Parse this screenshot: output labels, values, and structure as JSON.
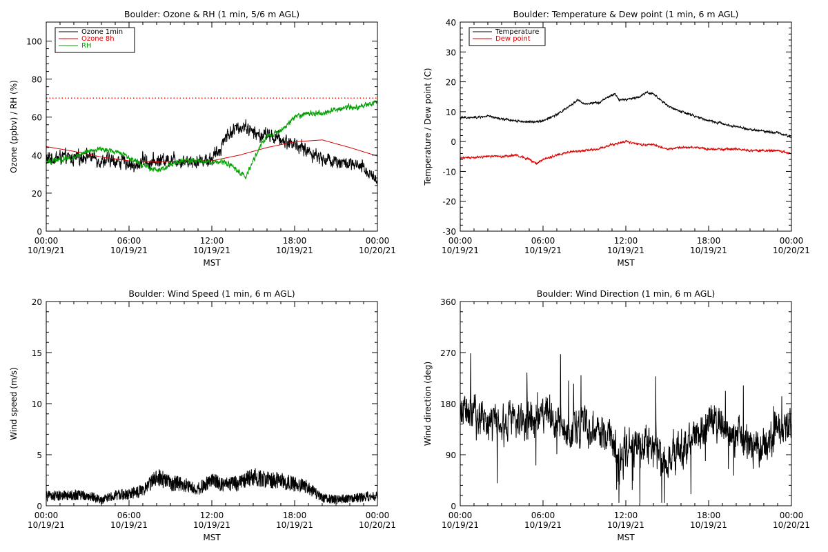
{
  "chart_data": [
    {
      "type": "line",
      "title": "Boulder: Ozone & RH (1 min, 5/6 m AGL)",
      "xlabel": "MST",
      "ylabel": "Ozone (ppbv) / RH (%)",
      "xlim": [
        0,
        24
      ],
      "ylim": [
        0,
        110
      ],
      "x_ticks": [
        {
          "x": 0,
          "time": "00:00",
          "date": "10/19/21"
        },
        {
          "x": 6,
          "time": "06:00",
          "date": "10/19/21"
        },
        {
          "x": 12,
          "time": "12:00",
          "date": "10/19/21"
        },
        {
          "x": 18,
          "time": "18:00",
          "date": "10/19/21"
        },
        {
          "x": 24,
          "time": "00:00",
          "date": "10/20/21"
        }
      ],
      "y_ticks": [
        0,
        20,
        40,
        60,
        80,
        100
      ],
      "reference_line": {
        "y": 70,
        "color": "#ff0000",
        "style": "dotted"
      },
      "legend": {
        "position": "top-left"
      },
      "series": [
        {
          "name": "Ozone 1min",
          "color": "#000000",
          "noise": 2.5,
          "x": [
            0,
            1,
            2,
            3,
            4,
            5,
            6,
            6.5,
            7,
            7.5,
            8,
            9,
            10,
            11,
            12,
            12.5,
            13,
            14,
            14.5,
            15,
            15.5,
            16,
            17,
            18,
            19,
            20,
            21,
            22,
            23,
            23.5,
            24
          ],
          "y": [
            38,
            39,
            38,
            40,
            37,
            37,
            36,
            33,
            38,
            36,
            37,
            38,
            37,
            37,
            38,
            42,
            50,
            55,
            55,
            52,
            50,
            51,
            48,
            46,
            42,
            38,
            37,
            35,
            33,
            30,
            27
          ]
        },
        {
          "name": "Ozone 8h",
          "color": "#dd0000",
          "noise": 0,
          "x": [
            0,
            2,
            4,
            6,
            8,
            10,
            12,
            14,
            16,
            18,
            20,
            22,
            24
          ],
          "y": [
            44.5,
            42,
            39,
            37,
            36.5,
            37,
            37,
            40,
            44,
            47,
            48,
            44,
            39.5
          ]
        },
        {
          "name": "RH",
          "color": "#00a000",
          "noise": 1,
          "x": [
            0,
            2,
            3,
            4,
            5,
            6,
            7,
            8,
            9,
            10,
            11,
            12,
            13,
            13.5,
            14,
            14.5,
            15,
            15.5,
            16,
            17,
            18,
            19,
            20,
            21,
            22,
            23,
            24
          ],
          "y": [
            36,
            39,
            42,
            43,
            42,
            39,
            35,
            32,
            35,
            37,
            37,
            36,
            36,
            34,
            31,
            29,
            37,
            44,
            50,
            53,
            60,
            62,
            62,
            64,
            65,
            66,
            68
          ]
        }
      ]
    },
    {
      "type": "line",
      "title": "Boulder: Temperature & Dew point (1 min, 6 m AGL)",
      "xlabel": "MST",
      "ylabel": "Temperature / Dew point (C)",
      "xlim": [
        0,
        24
      ],
      "ylim": [
        -30,
        40
      ],
      "x_ticks": [
        {
          "x": 0,
          "time": "00:00",
          "date": "10/19/21"
        },
        {
          "x": 6,
          "time": "06:00",
          "date": "10/19/21"
        },
        {
          "x": 12,
          "time": "12:00",
          "date": "10/19/21"
        },
        {
          "x": 18,
          "time": "18:00",
          "date": "10/19/21"
        },
        {
          "x": 24,
          "time": "00:00",
          "date": "10/20/21"
        }
      ],
      "y_ticks": [
        -30,
        -20,
        -10,
        0,
        10,
        20,
        30,
        40
      ],
      "legend": {
        "position": "top-left"
      },
      "series": [
        {
          "name": "Temperature",
          "color": "#000000",
          "noise": 0.25,
          "x": [
            0,
            1,
            2,
            3,
            4,
            5,
            6,
            7,
            8,
            8.5,
            9,
            10,
            11,
            11.2,
            11.5,
            12,
            13,
            13.5,
            14,
            15,
            16,
            17,
            18,
            19,
            20,
            21,
            22,
            23,
            24
          ],
          "y": [
            8,
            8,
            8.5,
            7.5,
            7,
            6.5,
            7,
            9,
            12,
            14,
            12.5,
            13,
            15.5,
            16,
            14,
            14,
            15,
            16.5,
            16,
            12,
            10,
            8.5,
            7,
            6,
            5,
            4,
            3.5,
            3,
            1.5
          ]
        },
        {
          "name": "Dew point",
          "color": "#dd0000",
          "noise": 0.25,
          "x": [
            0,
            1,
            2,
            3,
            4,
            5,
            5.5,
            6,
            7,
            8,
            9,
            10,
            11,
            12,
            13,
            14,
            15,
            16,
            17,
            18,
            19,
            20,
            21,
            22,
            23,
            24
          ],
          "y": [
            -5.5,
            -5.5,
            -5,
            -5,
            -4.5,
            -6,
            -7.5,
            -6,
            -4.5,
            -3.5,
            -3,
            -2.5,
            -1,
            0,
            -1,
            -1,
            -2.5,
            -2,
            -2,
            -2.5,
            -2.5,
            -2.5,
            -3,
            -3,
            -3,
            -4
          ]
        }
      ]
    },
    {
      "type": "line",
      "title": "Boulder: Wind Speed (1 min, 6 m AGL)",
      "xlabel": "MST",
      "ylabel": "Wind speed (m/s)",
      "xlim": [
        0,
        24
      ],
      "ylim": [
        0,
        20
      ],
      "x_ticks": [
        {
          "x": 0,
          "time": "00:00",
          "date": "10/19/21"
        },
        {
          "x": 6,
          "time": "06:00",
          "date": "10/19/21"
        },
        {
          "x": 12,
          "time": "12:00",
          "date": "10/19/21"
        },
        {
          "x": 18,
          "time": "18:00",
          "date": "10/19/21"
        },
        {
          "x": 24,
          "time": "00:00",
          "date": "10/20/21"
        }
      ],
      "y_ticks": [
        0,
        5,
        10,
        15,
        20
      ],
      "series": [
        {
          "name": "",
          "color": "#000000",
          "noise": 0.6,
          "min": 0,
          "x": [
            0,
            2,
            3,
            4,
            5,
            6,
            7,
            8,
            9,
            10,
            11,
            12,
            13,
            14,
            15,
            16,
            17,
            18,
            19,
            20,
            21,
            22,
            23,
            24
          ],
          "y": [
            0.8,
            0.9,
            0.9,
            0.4,
            0.9,
            1.0,
            1.3,
            2.6,
            2.0,
            1.9,
            1.5,
            2.2,
            1.8,
            2.0,
            2.6,
            2.3,
            2.2,
            1.9,
            1.6,
            0.6,
            0.5,
            0.6,
            0.7,
            0.8
          ]
        }
      ]
    },
    {
      "type": "line",
      "title": "Boulder: Wind Direction (1 min, 6 m AGL)",
      "xlabel": "MST",
      "ylabel": "Wind direction (deg)",
      "xlim": [
        0,
        24
      ],
      "ylim": [
        0,
        360
      ],
      "x_ticks": [
        {
          "x": 0,
          "time": "00:00",
          "date": "10/19/21"
        },
        {
          "x": 6,
          "time": "06:00",
          "date": "10/19/21"
        },
        {
          "x": 12,
          "time": "12:00",
          "date": "10/19/21"
        },
        {
          "x": 18,
          "time": "18:00",
          "date": "10/19/21"
        },
        {
          "x": 24,
          "time": "00:00",
          "date": "10/20/21"
        }
      ],
      "y_ticks": [
        0,
        90,
        180,
        270,
        360
      ],
      "series": [
        {
          "name": "",
          "color": "#000000",
          "noise": 22,
          "min": 5,
          "max": 285,
          "x": [
            0,
            1,
            2,
            3,
            4,
            5,
            6,
            7,
            8,
            9,
            10,
            11,
            11.5,
            12,
            13,
            14,
            15,
            16,
            17,
            18,
            19,
            20,
            21,
            22,
            23,
            24
          ],
          "y": [
            170,
            160,
            150,
            140,
            150,
            140,
            165,
            150,
            130,
            140,
            130,
            120,
            70,
            105,
            110,
            105,
            75,
            100,
            115,
            150,
            130,
            120,
            110,
            100,
            130,
            150
          ]
        }
      ]
    }
  ]
}
